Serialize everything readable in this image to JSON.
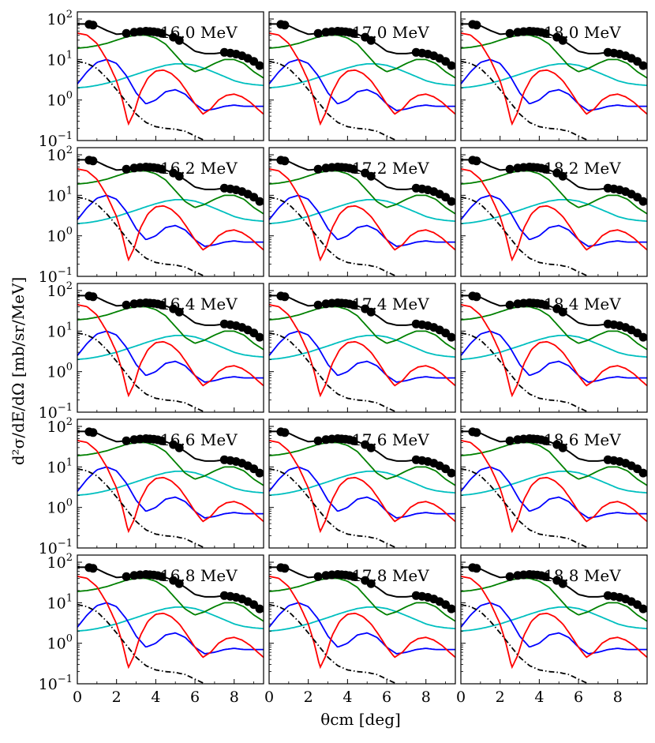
{
  "chart_data": {
    "type": "line",
    "description_axis": "log-scale small-multiples",
    "xlabel": "θcm [deg]",
    "ylabel": "d²σ/dE/dΩ [mb/sr/MeV]",
    "xlim": [
      0,
      9.5
    ],
    "ylim": [
      0.1,
      150
    ],
    "yscale": "log",
    "x_ticks": [
      0,
      2,
      4,
      6,
      8
    ],
    "y_ticks": [
      {
        "base": "10",
        "exp": "2",
        "value": 100
      },
      {
        "base": "10",
        "exp": "1",
        "value": 10
      },
      {
        "base": "10",
        "exp": "0",
        "value": 1
      },
      {
        "base": "10",
        "exp": "−1",
        "value": 0.1
      }
    ],
    "series_colors": {
      "total": "#000000",
      "L0": "#ff0000",
      "L1": "#0000ff",
      "L2": "#008000",
      "L3": "#00bfbf",
      "background": "#000000"
    },
    "panels": [
      {
        "label": "16.0 MeV",
        "row": 0,
        "col": 0
      },
      {
        "label": "17.0 MeV",
        "row": 0,
        "col": 1
      },
      {
        "label": "18.0 MeV",
        "row": 0,
        "col": 2
      },
      {
        "label": "16.2 MeV",
        "row": 1,
        "col": 0
      },
      {
        "label": "17.2 MeV",
        "row": 1,
        "col": 1
      },
      {
        "label": "18.2 MeV",
        "row": 1,
        "col": 2
      },
      {
        "label": "16.4 MeV",
        "row": 2,
        "col": 0
      },
      {
        "label": "17.4 MeV",
        "row": 2,
        "col": 1
      },
      {
        "label": "18.4 MeV",
        "row": 2,
        "col": 2
      },
      {
        "label": "16.6 MeV",
        "row": 3,
        "col": 0
      },
      {
        "label": "17.6 MeV",
        "row": 3,
        "col": 1
      },
      {
        "label": "18.6 MeV",
        "row": 3,
        "col": 2
      },
      {
        "label": "16.8 MeV",
        "row": 4,
        "col": 0
      },
      {
        "label": "17.8 MeV",
        "row": 4,
        "col": 1
      },
      {
        "label": "18.8 MeV",
        "row": 4,
        "col": 2
      }
    ],
    "data_points_x": [
      0.6,
      0.8,
      2.5,
      2.9,
      3.2,
      3.5,
      3.7,
      3.9,
      4.1,
      4.3,
      4.9,
      5.2,
      7.5,
      7.8,
      8.1,
      8.4,
      8.7,
      9.0,
      9.3
    ],
    "total_curve": {
      "x": [
        0,
        0.5,
        1.0,
        1.5,
        2.0,
        2.5,
        3.0,
        3.5,
        4.0,
        4.5,
        5.0,
        5.5,
        6.0,
        6.5,
        7.0,
        7.5,
        8.0,
        8.5,
        9.0,
        9.5
      ],
      "y": [
        75,
        75,
        68,
        52,
        42,
        44,
        48,
        50,
        48,
        42,
        34,
        24,
        16,
        14,
        14,
        15,
        14,
        12,
        9,
        6
      ]
    },
    "L0_curve": {
      "x": [
        0,
        0.5,
        1.0,
        1.5,
        2.0,
        2.3,
        2.6,
        2.9,
        3.2,
        3.6,
        4.0,
        4.4,
        4.8,
        5.2,
        5.6,
        6.0,
        6.4,
        6.8,
        7.2,
        7.6,
        8.0,
        8.4,
        8.8,
        9.2,
        9.5
      ],
      "y": [
        45,
        40,
        25,
        10,
        3,
        1.0,
        0.25,
        0.5,
        1.5,
        3.5,
        5.2,
        5.5,
        4.5,
        3.0,
        1.6,
        0.8,
        0.45,
        0.6,
        1.0,
        1.3,
        1.4,
        1.2,
        0.9,
        0.6,
        0.45
      ]
    },
    "L1_curve": {
      "x": [
        0,
        0.5,
        1.0,
        1.5,
        2.0,
        2.5,
        3.0,
        3.5,
        4.0,
        4.5,
        5.0,
        5.5,
        6.0,
        6.5,
        7.0,
        7.5,
        8.0,
        8.5,
        9.0,
        9.5
      ],
      "y": [
        2.5,
        5,
        8.5,
        10,
        8,
        4,
        1.5,
        0.8,
        1.0,
        1.6,
        1.8,
        1.4,
        0.8,
        0.55,
        0.6,
        0.7,
        0.75,
        0.7,
        0.7,
        0.7
      ]
    },
    "L2_curve": {
      "x": [
        0,
        0.5,
        1.0,
        1.5,
        2.0,
        2.5,
        3.0,
        3.5,
        4.0,
        4.5,
        5.0,
        5.5,
        6.0,
        6.5,
        7.0,
        7.5,
        8.0,
        8.5,
        9.0,
        9.5
      ],
      "y": [
        19,
        20,
        22,
        25,
        30,
        36,
        40,
        40,
        34,
        24,
        13,
        7,
        5,
        6,
        8,
        10,
        10,
        8,
        5,
        3.5
      ]
    },
    "L3_curve": {
      "x": [
        0,
        0.5,
        1.0,
        1.5,
        2.0,
        2.5,
        3.0,
        3.5,
        4.0,
        4.5,
        5.0,
        5.5,
        6.0,
        6.5,
        7.0,
        7.5,
        8.0,
        8.5,
        9.0,
        9.5
      ],
      "y": [
        2.0,
        2.1,
        2.3,
        2.6,
        3.0,
        3.6,
        4.3,
        5.2,
        6.2,
        7.2,
        7.8,
        7.8,
        7.2,
        6.0,
        4.8,
        3.8,
        3.0,
        2.6,
        2.4,
        2.3
      ]
    },
    "background_curve": {
      "x": [
        0,
        0.5,
        1.0,
        1.5,
        2.0,
        2.5,
        3.0,
        3.5,
        4.0,
        4.5,
        5.0,
        5.5,
        6.0,
        6.5
      ],
      "y": [
        9,
        8,
        6,
        3.5,
        1.8,
        0.9,
        0.45,
        0.28,
        0.22,
        0.2,
        0.19,
        0.17,
        0.13,
        0.1
      ]
    }
  }
}
